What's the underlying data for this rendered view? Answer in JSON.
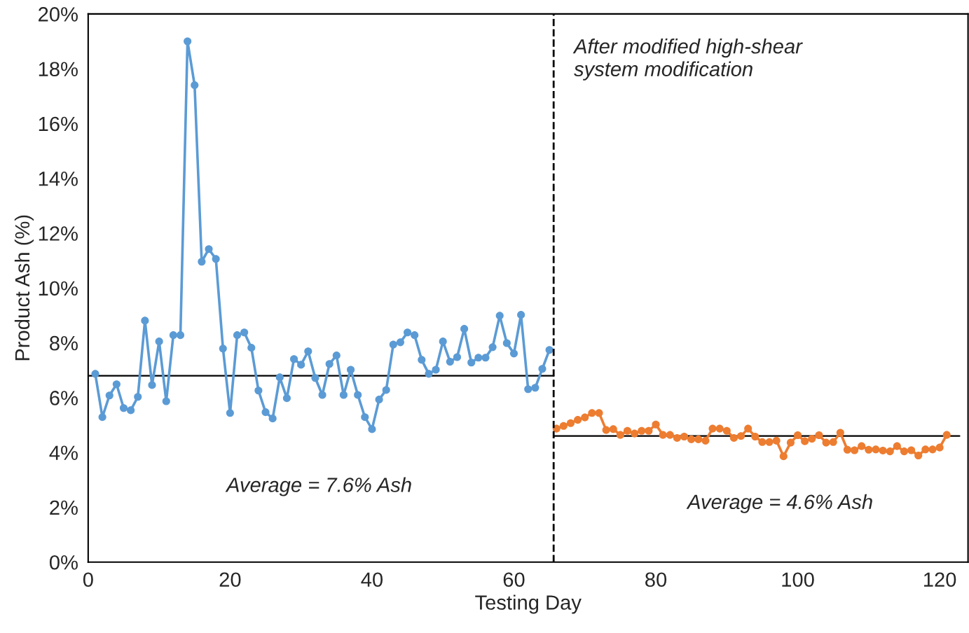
{
  "chart_data": {
    "type": "line",
    "xlabel": "Testing Day",
    "ylabel": "Product Ash (%)",
    "xlim": [
      0,
      124
    ],
    "xticks": [
      0,
      20,
      40,
      60,
      80,
      100,
      120
    ],
    "ylim": [
      0,
      20
    ],
    "yticks": [
      {
        "value": 0,
        "label": "0%"
      },
      {
        "value": 2,
        "label": "2%"
      },
      {
        "value": 4,
        "label": "4%"
      },
      {
        "value": 6,
        "label": "6%"
      },
      {
        "value": 8,
        "label": "8%"
      },
      {
        "value": 10,
        "label": "10%"
      },
      {
        "value": 12,
        "label": "12%"
      },
      {
        "value": 14,
        "label": "14%"
      },
      {
        "value": 16,
        "label": "16%"
      },
      {
        "value": 18,
        "label": "18%"
      },
      {
        "value": 20,
        "label": "20%"
      }
    ],
    "grid": false,
    "legend": false,
    "marker": "circle",
    "line_style": "solid",
    "series": [
      {
        "color": "#5b9bd5",
        "x": [
          1,
          2,
          3,
          4,
          5,
          6,
          7,
          8,
          9,
          10,
          11,
          12,
          13,
          14,
          15,
          16,
          17,
          18,
          19,
          20,
          21,
          22,
          23,
          24,
          25,
          26,
          27,
          28,
          29,
          30,
          31,
          32,
          33,
          34,
          35,
          36,
          37,
          38,
          39,
          40,
          41,
          42,
          43,
          44,
          45,
          46,
          47,
          48,
          49,
          50,
          51,
          52,
          53,
          54,
          55,
          56,
          57,
          58,
          59,
          60,
          61,
          62,
          63,
          64,
          65
        ],
        "values": [
          6.87,
          5.29,
          6.08,
          6.49,
          5.62,
          5.54,
          6.03,
          8.81,
          6.46,
          8.05,
          5.87,
          8.28,
          8.28,
          19.0,
          17.4,
          10.96,
          11.42,
          11.06,
          7.79,
          5.44,
          8.28,
          8.38,
          7.82,
          6.26,
          5.47,
          5.24,
          6.74,
          5.98,
          7.41,
          7.2,
          7.69,
          6.72,
          6.1,
          7.23,
          7.54,
          6.1,
          7.02,
          6.1,
          5.29,
          4.85,
          5.93,
          6.28,
          7.94,
          8.02,
          8.38,
          8.28,
          7.38,
          6.87,
          7.02,
          8.05,
          7.31,
          7.48,
          8.51,
          7.28,
          7.46,
          7.46,
          7.84,
          8.99,
          7.99,
          7.61,
          9.02,
          6.31,
          6.36,
          7.05,
          7.74
        ]
      },
      {
        "color": "#ed7d31",
        "x": [
          66,
          67,
          68,
          69,
          70,
          71,
          72,
          73,
          74,
          75,
          76,
          77,
          78,
          79,
          80,
          81,
          82,
          83,
          84,
          85,
          86,
          87,
          88,
          89,
          90,
          91,
          92,
          93,
          94,
          95,
          96,
          97,
          98,
          99,
          100,
          101,
          102,
          103,
          104,
          105,
          106,
          107,
          108,
          109,
          110,
          111,
          112,
          113,
          114,
          115,
          116,
          117,
          118,
          119,
          120,
          121
        ],
        "values": [
          4.87,
          4.97,
          5.07,
          5.19,
          5.28,
          5.44,
          5.44,
          4.82,
          4.85,
          4.64,
          4.79,
          4.69,
          4.79,
          4.79,
          5.02,
          4.64,
          4.64,
          4.53,
          4.58,
          4.48,
          4.48,
          4.43,
          4.87,
          4.87,
          4.79,
          4.53,
          4.6,
          4.87,
          4.58,
          4.38,
          4.38,
          4.43,
          3.86,
          4.36,
          4.63,
          4.41,
          4.5,
          4.63,
          4.36,
          4.38,
          4.72,
          4.1,
          4.08,
          4.23,
          4.1,
          4.11,
          4.07,
          4.04,
          4.23,
          4.04,
          4.08,
          3.89,
          4.11,
          4.11,
          4.18,
          4.64
        ]
      },
      {
        "type": "line",
        "color": "#000000",
        "marker": "none",
        "x": [
          0,
          65.6
        ],
        "values": [
          6.8,
          6.8
        ]
      },
      {
        "type": "line",
        "color": "#000000",
        "marker": "none",
        "x": [
          65.6,
          122.8
        ],
        "values": [
          4.6,
          4.6
        ]
      }
    ],
    "ref_lines": [
      {
        "axis": "x",
        "value": 65.6,
        "color": "#000000",
        "line_style": "dashed"
      }
    ],
    "annotations": [
      "After modified high-shear\nsystem modification",
      "Average = 7.6% Ash",
      "Average = 4.6% Ash"
    ]
  }
}
